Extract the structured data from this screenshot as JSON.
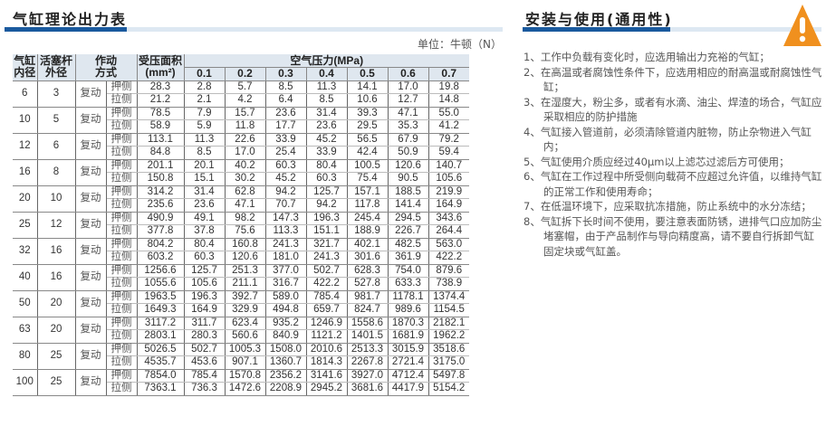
{
  "left": {
    "title": "气缸理论出力表",
    "unit": "单位：牛顿（N）",
    "headers": {
      "bore": [
        "气缸",
        "内径"
      ],
      "rod": [
        "活塞杆",
        "外径"
      ],
      "action": [
        "作动",
        "方式"
      ],
      "area": [
        "受压面积",
        "(mm²)"
      ],
      "pressure": "空气压力(MPa)",
      "pressures": [
        "0.1",
        "0.2",
        "0.3",
        "0.4",
        "0.5",
        "0.6",
        "0.7"
      ]
    },
    "rows": [
      {
        "bore": "6",
        "rod": "3",
        "mode": "复动",
        "push": [
          "28.3",
          "2.8",
          "5.7",
          "8.5",
          "11.3",
          "14.1",
          "17.0",
          "19.8"
        ],
        "pull": [
          "21.2",
          "2.1",
          "4.2",
          "6.4",
          "8.5",
          "10.6",
          "12.7",
          "14.8"
        ]
      },
      {
        "bore": "10",
        "rod": "5",
        "mode": "复动",
        "push": [
          "78.5",
          "7.9",
          "15.7",
          "23.6",
          "31.4",
          "39.3",
          "47.1",
          "55.0"
        ],
        "pull": [
          "58.9",
          "5.9",
          "11.8",
          "17.7",
          "23.6",
          "29.5",
          "35.3",
          "41.2"
        ]
      },
      {
        "bore": "12",
        "rod": "6",
        "mode": "复动",
        "push": [
          "113.1",
          "11.3",
          "22.6",
          "33.9",
          "45.2",
          "56.5",
          "67.9",
          "79.2"
        ],
        "pull": [
          "84.8",
          "8.5",
          "17.0",
          "25.4",
          "33.9",
          "42.4",
          "50.9",
          "59.4"
        ]
      },
      {
        "bore": "16",
        "rod": "8",
        "mode": "复动",
        "push": [
          "201.1",
          "20.1",
          "40.2",
          "60.3",
          "80.4",
          "100.5",
          "120.6",
          "140.7"
        ],
        "pull": [
          "150.8",
          "15.1",
          "30.2",
          "45.2",
          "60.3",
          "75.4",
          "90.5",
          "105.6"
        ]
      },
      {
        "bore": "20",
        "rod": "10",
        "mode": "复动",
        "push": [
          "314.2",
          "31.4",
          "62.8",
          "94.2",
          "125.7",
          "157.1",
          "188.5",
          "219.9"
        ],
        "pull": [
          "235.6",
          "23.6",
          "47.1",
          "70.7",
          "94.2",
          "117.8",
          "141.4",
          "164.9"
        ]
      },
      {
        "bore": "25",
        "rod": "12",
        "mode": "复动",
        "push": [
          "490.9",
          "49.1",
          "98.2",
          "147.3",
          "196.3",
          "245.4",
          "294.5",
          "343.6"
        ],
        "pull": [
          "377.8",
          "37.8",
          "75.6",
          "113.3",
          "151.1",
          "188.9",
          "226.7",
          "264.4"
        ]
      },
      {
        "bore": "32",
        "rod": "16",
        "mode": "复动",
        "push": [
          "804.2",
          "80.4",
          "160.8",
          "241.3",
          "321.7",
          "402.1",
          "482.5",
          "563.0"
        ],
        "pull": [
          "603.2",
          "60.3",
          "120.6",
          "181.0",
          "241.3",
          "301.6",
          "361.9",
          "422.2"
        ]
      },
      {
        "bore": "40",
        "rod": "16",
        "mode": "复动",
        "push": [
          "1256.6",
          "125.7",
          "251.3",
          "377.0",
          "502.7",
          "628.3",
          "754.0",
          "879.6"
        ],
        "pull": [
          "1055.6",
          "105.6",
          "211.1",
          "316.7",
          "422.2",
          "527.8",
          "633.3",
          "738.9"
        ]
      },
      {
        "bore": "50",
        "rod": "20",
        "mode": "复动",
        "push": [
          "1963.5",
          "196.3",
          "392.7",
          "589.0",
          "785.4",
          "981.7",
          "1178.1",
          "1374.4"
        ],
        "pull": [
          "1649.3",
          "164.9",
          "329.9",
          "494.8",
          "659.7",
          "824.7",
          "989.6",
          "1154.5"
        ]
      },
      {
        "bore": "63",
        "rod": "20",
        "mode": "复动",
        "push": [
          "3117.2",
          "311.7",
          "623.4",
          "935.2",
          "1246.9",
          "1558.6",
          "1870.3",
          "2182.1"
        ],
        "pull": [
          "2803.1",
          "280.3",
          "560.6",
          "840.9",
          "1121.2",
          "1401.5",
          "1681.9",
          "1962.2"
        ]
      },
      {
        "bore": "80",
        "rod": "25",
        "mode": "复动",
        "push": [
          "5026.5",
          "502.7",
          "1005.3",
          "1508.0",
          "2010.6",
          "2513.3",
          "3015.9",
          "3518.6"
        ],
        "pull": [
          "4535.7",
          "453.6",
          "907.1",
          "1360.7",
          "1814.3",
          "2267.8",
          "2721.4",
          "3175.0"
        ]
      },
      {
        "bore": "100",
        "rod": "25",
        "mode": "复动",
        "push": [
          "7854.0",
          "785.4",
          "1570.8",
          "2356.2",
          "3141.6",
          "3927.0",
          "4712.4",
          "5497.8"
        ],
        "pull": [
          "7363.1",
          "736.3",
          "1472.6",
          "2208.9",
          "2945.2",
          "3681.6",
          "4417.9",
          "5154.2"
        ]
      }
    ],
    "push_label": "押侧",
    "pull_label": "拉侧"
  },
  "right": {
    "title": "安装与使用(通用性)",
    "warning_icon": "warning-triangle",
    "warning_color": "#f0901e",
    "tips": [
      "1、工作中负载有变化时，应选用输出力充裕的气缸；",
      "2、在高温或者腐蚀性条件下，应选用相应的耐高温或耐腐蚀性气缸；",
      "3、在湿度大，粉尘多，或者有水滴、油尘、焊渣的场合，气缸应采取相应的防护措施",
      "4、气缸接入管道前，必须清除管道内脏物，防止杂物进入气缸内；",
      "5、气缸使用介质应经过40μm以上滤芯过滤后方可使用；",
      "6、气缸在工作过程中所受侧向载荷不应超过允许值，以维持气缸的正常工作和使用寿命；",
      "7、在低温环境下，应采取抗冻措施，防止系统中的水分冻结；",
      "8、气缸拆下长时间不使用，要注意表面防锈，进排气口应加防尘堵塞帽，由于产品制作与导向精度高，请不要自行拆卸气缸固定块或气缸盖。"
    ]
  }
}
